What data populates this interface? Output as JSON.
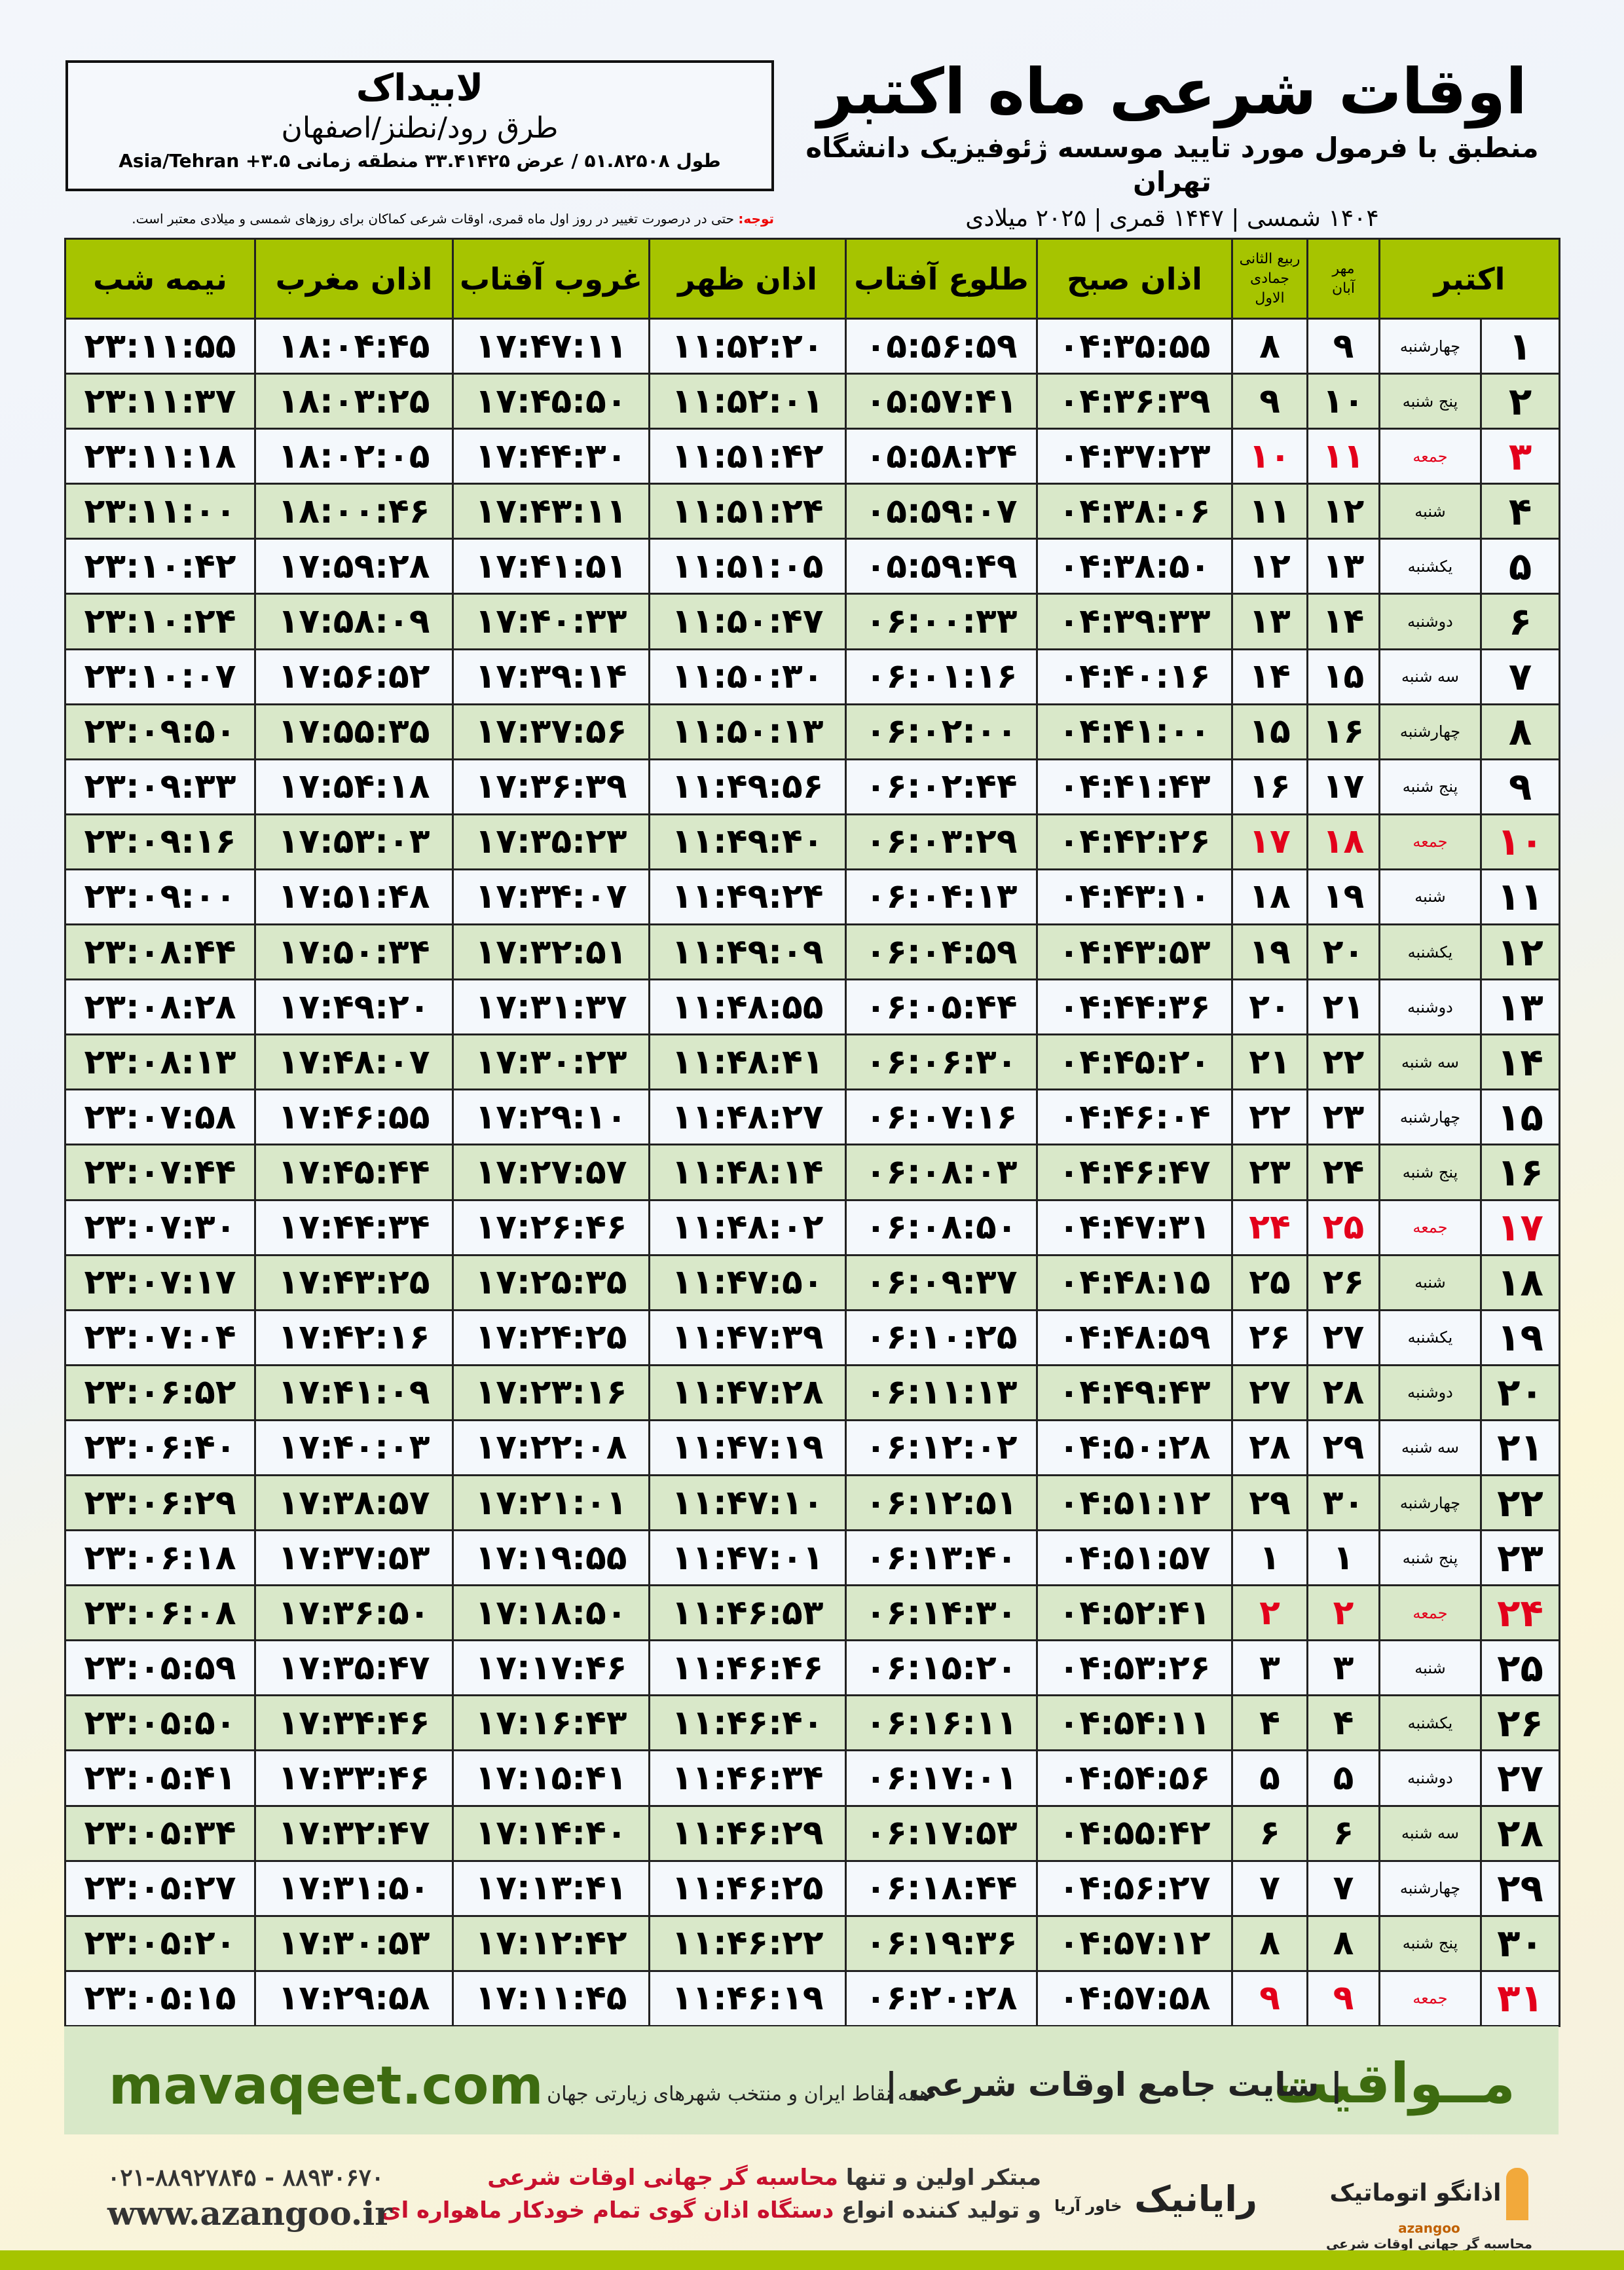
{
  "info": {
    "city": "لابیداک",
    "region": "طرق رود/نطنز/اصفهان",
    "coords": "طول ۵۱.۸۲۵۰۸ / عرض ۳۳.۴۱۴۲۵ منطقه زمانی ۳.۵+ Asia/Tehran"
  },
  "title": {
    "main": "اوقات شرعی ماه اکتبر",
    "sub": "منطبق با فرمول مورد تایید موسسه ژئوفیزیک دانشگاه تهران",
    "years": "۱۴۰۴ شمسی | ۱۴۴۷ قمری | ۲۰۲۵ میلادی"
  },
  "note": {
    "label": "توجه:",
    "text": "حتی در درصورت تغییر در روز اول ماه قمری، اوقات شرعی کماکان برای روزهای شمسی و میلادی معتبر است."
  },
  "table": {
    "headers": {
      "month": "اکتبر",
      "shamsi_top": "مهر",
      "shamsi_bottom": "آبان",
      "qamari_top": "ربیع الثانی",
      "qamari_bottom": "جمادی الاول",
      "fajr": "اذان صبح",
      "sunrise": "طلوع آفتاب",
      "dhuhr": "اذان ظهر",
      "sunset": "غروب آفتاب",
      "maghrib": "اذان مغرب",
      "midnight": "نیمه شب"
    },
    "holiday_color": "#e3001b",
    "rows": [
      {
        "day": "۱",
        "weekday": "چهارشنبه",
        "shamsi": "۹",
        "qamari": "۸",
        "fajr": "۰۴:۳۵:۵۵",
        "sunrise": "۰۵:۵۶:۵۹",
        "dhuhr": "۱۱:۵۲:۲۰",
        "sunset": "۱۷:۴۷:۱۱",
        "maghrib": "۱۸:۰۴:۴۵",
        "midnight": "۲۳:۱۱:۵۵"
      },
      {
        "day": "۲",
        "weekday": "پنج شنبه",
        "shamsi": "۱۰",
        "qamari": "۹",
        "fajr": "۰۴:۳۶:۳۹",
        "sunrise": "۰۵:۵۷:۴۱",
        "dhuhr": "۱۱:۵۲:۰۱",
        "sunset": "۱۷:۴۵:۵۰",
        "maghrib": "۱۸:۰۳:۲۵",
        "midnight": "۲۳:۱۱:۳۷"
      },
      {
        "day": "۳",
        "weekday": "جمعه",
        "shamsi": "۱۱",
        "qamari": "۱۰",
        "fajr": "۰۴:۳۷:۲۳",
        "sunrise": "۰۵:۵۸:۲۴",
        "dhuhr": "۱۱:۵۱:۴۲",
        "sunset": "۱۷:۴۴:۳۰",
        "maghrib": "۱۸:۰۲:۰۵",
        "midnight": "۲۳:۱۱:۱۸",
        "holiday": true
      },
      {
        "day": "۴",
        "weekday": "شنبه",
        "shamsi": "۱۲",
        "qamari": "۱۱",
        "fajr": "۰۴:۳۸:۰۶",
        "sunrise": "۰۵:۵۹:۰۷",
        "dhuhr": "۱۱:۵۱:۲۴",
        "sunset": "۱۷:۴۳:۱۱",
        "maghrib": "۱۸:۰۰:۴۶",
        "midnight": "۲۳:۱۱:۰۰"
      },
      {
        "day": "۵",
        "weekday": "یکشنبه",
        "shamsi": "۱۳",
        "qamari": "۱۲",
        "fajr": "۰۴:۳۸:۵۰",
        "sunrise": "۰۵:۵۹:۴۹",
        "dhuhr": "۱۱:۵۱:۰۵",
        "sunset": "۱۷:۴۱:۵۱",
        "maghrib": "۱۷:۵۹:۲۸",
        "midnight": "۲۳:۱۰:۴۲"
      },
      {
        "day": "۶",
        "weekday": "دوشنبه",
        "shamsi": "۱۴",
        "qamari": "۱۳",
        "fajr": "۰۴:۳۹:۳۳",
        "sunrise": "۰۶:۰۰:۳۳",
        "dhuhr": "۱۱:۵۰:۴۷",
        "sunset": "۱۷:۴۰:۳۳",
        "maghrib": "۱۷:۵۸:۰۹",
        "midnight": "۲۳:۱۰:۲۴"
      },
      {
        "day": "۷",
        "weekday": "سه شنبه",
        "shamsi": "۱۵",
        "qamari": "۱۴",
        "fajr": "۰۴:۴۰:۱۶",
        "sunrise": "۰۶:۰۱:۱۶",
        "dhuhr": "۱۱:۵۰:۳۰",
        "sunset": "۱۷:۳۹:۱۴",
        "maghrib": "۱۷:۵۶:۵۲",
        "midnight": "۲۳:۱۰:۰۷"
      },
      {
        "day": "۸",
        "weekday": "چهارشنبه",
        "shamsi": "۱۶",
        "qamari": "۱۵",
        "fajr": "۰۴:۴۱:۰۰",
        "sunrise": "۰۶:۰۲:۰۰",
        "dhuhr": "۱۱:۵۰:۱۳",
        "sunset": "۱۷:۳۷:۵۶",
        "maghrib": "۱۷:۵۵:۳۵",
        "midnight": "۲۳:۰۹:۵۰"
      },
      {
        "day": "۹",
        "weekday": "پنج شنبه",
        "shamsi": "۱۷",
        "qamari": "۱۶",
        "fajr": "۰۴:۴۱:۴۳",
        "sunrise": "۰۶:۰۲:۴۴",
        "dhuhr": "۱۱:۴۹:۵۶",
        "sunset": "۱۷:۳۶:۳۹",
        "maghrib": "۱۷:۵۴:۱۸",
        "midnight": "۲۳:۰۹:۳۳"
      },
      {
        "day": "۱۰",
        "weekday": "جمعه",
        "shamsi": "۱۸",
        "qamari": "۱۷",
        "fajr": "۰۴:۴۲:۲۶",
        "sunrise": "۰۶:۰۳:۲۹",
        "dhuhr": "۱۱:۴۹:۴۰",
        "sunset": "۱۷:۳۵:۲۳",
        "maghrib": "۱۷:۵۳:۰۳",
        "midnight": "۲۳:۰۹:۱۶",
        "holiday": true
      },
      {
        "day": "۱۱",
        "weekday": "شنبه",
        "shamsi": "۱۹",
        "qamari": "۱۸",
        "fajr": "۰۴:۴۳:۱۰",
        "sunrise": "۰۶:۰۴:۱۳",
        "dhuhr": "۱۱:۴۹:۲۴",
        "sunset": "۱۷:۳۴:۰۷",
        "maghrib": "۱۷:۵۱:۴۸",
        "midnight": "۲۳:۰۹:۰۰"
      },
      {
        "day": "۱۲",
        "weekday": "یکشنبه",
        "shamsi": "۲۰",
        "qamari": "۱۹",
        "fajr": "۰۴:۴۳:۵۳",
        "sunrise": "۰۶:۰۴:۵۹",
        "dhuhr": "۱۱:۴۹:۰۹",
        "sunset": "۱۷:۳۲:۵۱",
        "maghrib": "۱۷:۵۰:۳۴",
        "midnight": "۲۳:۰۸:۴۴"
      },
      {
        "day": "۱۳",
        "weekday": "دوشنبه",
        "shamsi": "۲۱",
        "qamari": "۲۰",
        "fajr": "۰۴:۴۴:۳۶",
        "sunrise": "۰۶:۰۵:۴۴",
        "dhuhr": "۱۱:۴۸:۵۵",
        "sunset": "۱۷:۳۱:۳۷",
        "maghrib": "۱۷:۴۹:۲۰",
        "midnight": "۲۳:۰۸:۲۸"
      },
      {
        "day": "۱۴",
        "weekday": "سه شنبه",
        "shamsi": "۲۲",
        "qamari": "۲۱",
        "fajr": "۰۴:۴۵:۲۰",
        "sunrise": "۰۶:۰۶:۳۰",
        "dhuhr": "۱۱:۴۸:۴۱",
        "sunset": "۱۷:۳۰:۲۳",
        "maghrib": "۱۷:۴۸:۰۷",
        "midnight": "۲۳:۰۸:۱۳"
      },
      {
        "day": "۱۵",
        "weekday": "چهارشنبه",
        "shamsi": "۲۳",
        "qamari": "۲۲",
        "fajr": "۰۴:۴۶:۰۴",
        "sunrise": "۰۶:۰۷:۱۶",
        "dhuhr": "۱۱:۴۸:۲۷",
        "sunset": "۱۷:۲۹:۱۰",
        "maghrib": "۱۷:۴۶:۵۵",
        "midnight": "۲۳:۰۷:۵۸"
      },
      {
        "day": "۱۶",
        "weekday": "پنج شنبه",
        "shamsi": "۲۴",
        "qamari": "۲۳",
        "fajr": "۰۴:۴۶:۴۷",
        "sunrise": "۰۶:۰۸:۰۳",
        "dhuhr": "۱۱:۴۸:۱۴",
        "sunset": "۱۷:۲۷:۵۷",
        "maghrib": "۱۷:۴۵:۴۴",
        "midnight": "۲۳:۰۷:۴۴"
      },
      {
        "day": "۱۷",
        "weekday": "جمعه",
        "shamsi": "۲۵",
        "qamari": "۲۴",
        "fajr": "۰۴:۴۷:۳۱",
        "sunrise": "۰۶:۰۸:۵۰",
        "dhuhr": "۱۱:۴۸:۰۲",
        "sunset": "۱۷:۲۶:۴۶",
        "maghrib": "۱۷:۴۴:۳۴",
        "midnight": "۲۳:۰۷:۳۰",
        "holiday": true
      },
      {
        "day": "۱۸",
        "weekday": "شنبه",
        "shamsi": "۲۶",
        "qamari": "۲۵",
        "fajr": "۰۴:۴۸:۱۵",
        "sunrise": "۰۶:۰۹:۳۷",
        "dhuhr": "۱۱:۴۷:۵۰",
        "sunset": "۱۷:۲۵:۳۵",
        "maghrib": "۱۷:۴۳:۲۵",
        "midnight": "۲۳:۰۷:۱۷"
      },
      {
        "day": "۱۹",
        "weekday": "یکشنبه",
        "shamsi": "۲۷",
        "qamari": "۲۶",
        "fajr": "۰۴:۴۸:۵۹",
        "sunrise": "۰۶:۱۰:۲۵",
        "dhuhr": "۱۱:۴۷:۳۹",
        "sunset": "۱۷:۲۴:۲۵",
        "maghrib": "۱۷:۴۲:۱۶",
        "midnight": "۲۳:۰۷:۰۴"
      },
      {
        "day": "۲۰",
        "weekday": "دوشنبه",
        "shamsi": "۲۸",
        "qamari": "۲۷",
        "fajr": "۰۴:۴۹:۴۳",
        "sunrise": "۰۶:۱۱:۱۳",
        "dhuhr": "۱۱:۴۷:۲۸",
        "sunset": "۱۷:۲۳:۱۶",
        "maghrib": "۱۷:۴۱:۰۹",
        "midnight": "۲۳:۰۶:۵۲"
      },
      {
        "day": "۲۱",
        "weekday": "سه شنبه",
        "shamsi": "۲۹",
        "qamari": "۲۸",
        "fajr": "۰۴:۵۰:۲۸",
        "sunrise": "۰۶:۱۲:۰۲",
        "dhuhr": "۱۱:۴۷:۱۹",
        "sunset": "۱۷:۲۲:۰۸",
        "maghrib": "۱۷:۴۰:۰۳",
        "midnight": "۲۳:۰۶:۴۰"
      },
      {
        "day": "۲۲",
        "weekday": "چهارشنبه",
        "shamsi": "۳۰",
        "qamari": "۲۹",
        "fajr": "۰۴:۵۱:۱۲",
        "sunrise": "۰۶:۱۲:۵۱",
        "dhuhr": "۱۱:۴۷:۱۰",
        "sunset": "۱۷:۲۱:۰۱",
        "maghrib": "۱۷:۳۸:۵۷",
        "midnight": "۲۳:۰۶:۲۹"
      },
      {
        "day": "۲۳",
        "weekday": "پنج شنبه",
        "shamsi": "۱",
        "qamari": "۱",
        "fajr": "۰۴:۵۱:۵۷",
        "sunrise": "۰۶:۱۳:۴۰",
        "dhuhr": "۱۱:۴۷:۰۱",
        "sunset": "۱۷:۱۹:۵۵",
        "maghrib": "۱۷:۳۷:۵۳",
        "midnight": "۲۳:۰۶:۱۸"
      },
      {
        "day": "۲۴",
        "weekday": "جمعه",
        "shamsi": "۲",
        "qamari": "۲",
        "fajr": "۰۴:۵۲:۴۱",
        "sunrise": "۰۶:۱۴:۳۰",
        "dhuhr": "۱۱:۴۶:۵۳",
        "sunset": "۱۷:۱۸:۵۰",
        "maghrib": "۱۷:۳۶:۵۰",
        "midnight": "۲۳:۰۶:۰۸",
        "holiday": true
      },
      {
        "day": "۲۵",
        "weekday": "شنبه",
        "shamsi": "۳",
        "qamari": "۳",
        "fajr": "۰۴:۵۳:۲۶",
        "sunrise": "۰۶:۱۵:۲۰",
        "dhuhr": "۱۱:۴۶:۴۶",
        "sunset": "۱۷:۱۷:۴۶",
        "maghrib": "۱۷:۳۵:۴۷",
        "midnight": "۲۳:۰۵:۵۹"
      },
      {
        "day": "۲۶",
        "weekday": "یکشنبه",
        "shamsi": "۴",
        "qamari": "۴",
        "fajr": "۰۴:۵۴:۱۱",
        "sunrise": "۰۶:۱۶:۱۱",
        "dhuhr": "۱۱:۴۶:۴۰",
        "sunset": "۱۷:۱۶:۴۳",
        "maghrib": "۱۷:۳۴:۴۶",
        "midnight": "۲۳:۰۵:۵۰"
      },
      {
        "day": "۲۷",
        "weekday": "دوشنبه",
        "shamsi": "۵",
        "qamari": "۵",
        "fajr": "۰۴:۵۴:۵۶",
        "sunrise": "۰۶:۱۷:۰۱",
        "dhuhr": "۱۱:۴۶:۳۴",
        "sunset": "۱۷:۱۵:۴۱",
        "maghrib": "۱۷:۳۳:۴۶",
        "midnight": "۲۳:۰۵:۴۱"
      },
      {
        "day": "۲۸",
        "weekday": "سه شنبه",
        "shamsi": "۶",
        "qamari": "۶",
        "fajr": "۰۴:۵۵:۴۲",
        "sunrise": "۰۶:۱۷:۵۳",
        "dhuhr": "۱۱:۴۶:۲۹",
        "sunset": "۱۷:۱۴:۴۰",
        "maghrib": "۱۷:۳۲:۴۷",
        "midnight": "۲۳:۰۵:۳۴"
      },
      {
        "day": "۲۹",
        "weekday": "چهارشنبه",
        "shamsi": "۷",
        "qamari": "۷",
        "fajr": "۰۴:۵۶:۲۷",
        "sunrise": "۰۶:۱۸:۴۴",
        "dhuhr": "۱۱:۴۶:۲۵",
        "sunset": "۱۷:۱۳:۴۱",
        "maghrib": "۱۷:۳۱:۵۰",
        "midnight": "۲۳:۰۵:۲۷"
      },
      {
        "day": "۳۰",
        "weekday": "پنج شنبه",
        "shamsi": "۸",
        "qamari": "۸",
        "fajr": "۰۴:۵۷:۱۲",
        "sunrise": "۰۶:۱۹:۳۶",
        "dhuhr": "۱۱:۴۶:۲۲",
        "sunset": "۱۷:۱۲:۴۲",
        "maghrib": "۱۷:۳۰:۵۳",
        "midnight": "۲۳:۰۵:۲۰"
      },
      {
        "day": "۳۱",
        "weekday": "جمعه",
        "shamsi": "۹",
        "qamari": "۹",
        "fajr": "۰۴:۵۷:۵۸",
        "sunrise": "۰۶:۲۰:۲۸",
        "dhuhr": "۱۱:۴۶:۱۹",
        "sunset": "۱۷:۱۱:۴۵",
        "maghrib": "۱۷:۲۹:۵۸",
        "midnight": "۲۳:۰۵:۱۵",
        "holiday": true
      }
    ]
  },
  "footer": {
    "brand": "مــواقیت",
    "slogan": "| سایت جامع اوقات شرعی |",
    "slogan2": "همه نقاط ایران و منتخب شهرهای زیارتی جهان",
    "site": "mavaqeet.com",
    "logo_azangoo": "اذانگو اتوماتیک",
    "logo_azangoo_en": "azangoo",
    "logo_azangoo_sub": "محاسبه گر جهانی اوقات شرعی",
    "logo_rayanik": "رایانیک",
    "logo_rayanik_sub": "خاور آریا",
    "ad_line1_a": "مبتکر اولین و تنها ",
    "ad_line1_b": "محاسبه گر جهانی اوقات شرعی",
    "ad_line2_a": "و تولید کننده انواع ",
    "ad_line2_b": "دستگاه اذان گوی تمام خودکار ماهواره ای",
    "phone": "۰۲۱-۸۸۹۲۷۸۴۵ - ۸۸۹۳۰۶۷۰",
    "web": "www.azangoo.ir"
  },
  "colors": {
    "header_green": "#a6c400",
    "row_green": "#d9e8c9",
    "brand_green": "#3d6b10",
    "accent_red": "#c8102e"
  }
}
